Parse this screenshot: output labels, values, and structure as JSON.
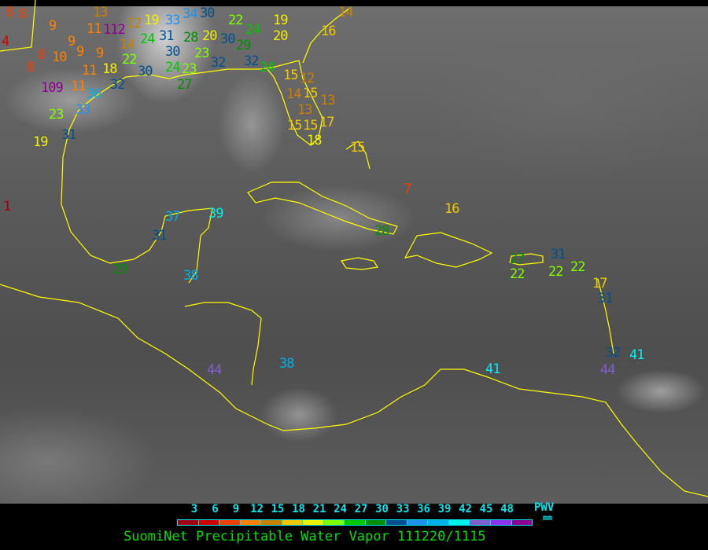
{
  "title": "SuomiNet Precipitable Water Vapor 111220/1115",
  "legend": {
    "label": "PWV",
    "unit": "mm",
    "ticks": [
      "3",
      "6",
      "9",
      "12",
      "15",
      "18",
      "21",
      "24",
      "27",
      "30",
      "33",
      "36",
      "39",
      "42",
      "45",
      "48"
    ],
    "colors": [
      "#a00010",
      "#d00000",
      "#f04000",
      "#ff8000",
      "#c88000",
      "#f0c800",
      "#f0f000",
      "#80ff00",
      "#00c800",
      "#009000",
      "#005090",
      "#2090f0",
      "#00b0e8",
      "#00f0f0",
      "#8060d0",
      "#9030f0",
      "#900090"
    ]
  },
  "coastline_color": "#ffff00",
  "stations": [
    "8",
    "8",
    "4",
    "9",
    "9",
    "8",
    "10",
    "9",
    "9",
    "8",
    "11",
    "18",
    "109",
    "11",
    "23",
    "36",
    "33",
    "32",
    "31",
    "19",
    "1",
    "13",
    "11",
    "112",
    "12",
    "14",
    "22",
    "19",
    "33",
    "24",
    "31",
    "30",
    "28",
    "20",
    "23",
    "30",
    "24",
    "23",
    "27",
    "34",
    "30",
    "22",
    "24",
    "30",
    "29",
    "32",
    "32",
    "24",
    "19",
    "20",
    "16",
    "14",
    "15",
    "12",
    "15",
    "14",
    "13",
    "13",
    "15",
    "17",
    "15",
    "18",
    "15",
    "7",
    "16",
    "28",
    "37",
    "39",
    "31",
    "38",
    "29",
    "44",
    "38",
    "27",
    "22",
    "31",
    "22",
    "22",
    "17",
    "31",
    "32",
    "41",
    "44",
    "41"
  ]
}
